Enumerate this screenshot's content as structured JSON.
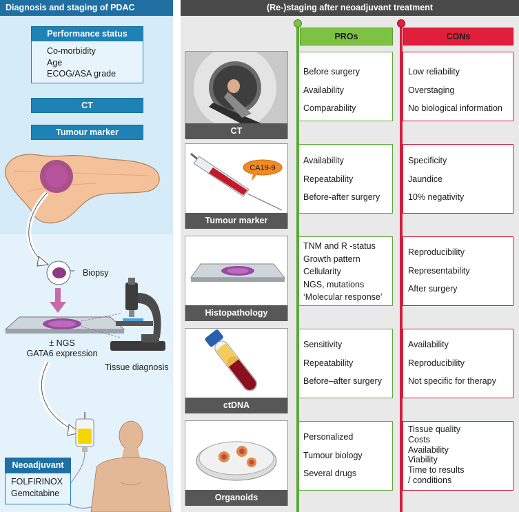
{
  "left": {
    "title": "Diagnosis and staging of PDAC",
    "performance_title": "Performance status",
    "performance_items": [
      "Co-morbidity",
      "Age",
      "ECOG/ASA grade"
    ],
    "ct_label": "CT",
    "tumour_marker_label": "Tumour marker",
    "biopsy_label": "Biopsy",
    "ngs_line1": "± NGS",
    "ngs_line2": "GATA6 expression",
    "tissue_diagnosis_label": "Tissue diagnosis",
    "neoadjuvant_title": "Neoadjuvant",
    "neoadjuvant_items": [
      "FOLFIRINOX",
      "Gemcitabine"
    ]
  },
  "right": {
    "title": "(Re-)staging after neoadjuvant treatment",
    "pros_label": "PROs",
    "cons_label": "CONs",
    "rows": [
      {
        "label": "CT",
        "pros": [
          "Before surgery",
          "Availability",
          "Comparability"
        ],
        "cons": [
          "Low reliability",
          "Overstaging",
          "No biological information"
        ]
      },
      {
        "label": "Tumour marker",
        "badge": "CA19-9",
        "pros": [
          "Availability",
          "Repeatability",
          "Before-after surgery"
        ],
        "cons": [
          "Specificity",
          "Jaundice",
          "10% negativity"
        ]
      },
      {
        "label": "Histopathology",
        "pros": [
          "TNM and R -status",
          "Growth pattern",
          "Cellularity",
          "NGS, mutations",
          "‘Molecular response’"
        ],
        "cons": [
          "Reproducibility",
          "Representability",
          "After surgery"
        ]
      },
      {
        "label": "ctDNA",
        "pros": [
          "Sensitivity",
          "Repeatability",
          "Before–after surgery"
        ],
        "cons": [
          "Availability",
          "Reproducibility",
          "Not specific for therapy"
        ]
      },
      {
        "label": "Organoids",
        "pros": [
          "Personalized",
          "Tumour biology",
          "Several drugs"
        ],
        "cons": [
          "Tissue quality",
          "Costs",
          "Availability",
          "Viability",
          "Time to results",
          "/ conditions"
        ]
      }
    ]
  },
  "colors": {
    "left_bg": "#d5ebf8",
    "blue": "#1f82b5",
    "pros_green": "#7dc242",
    "cons_red": "#e11e3c",
    "label_gray": "#575757"
  }
}
